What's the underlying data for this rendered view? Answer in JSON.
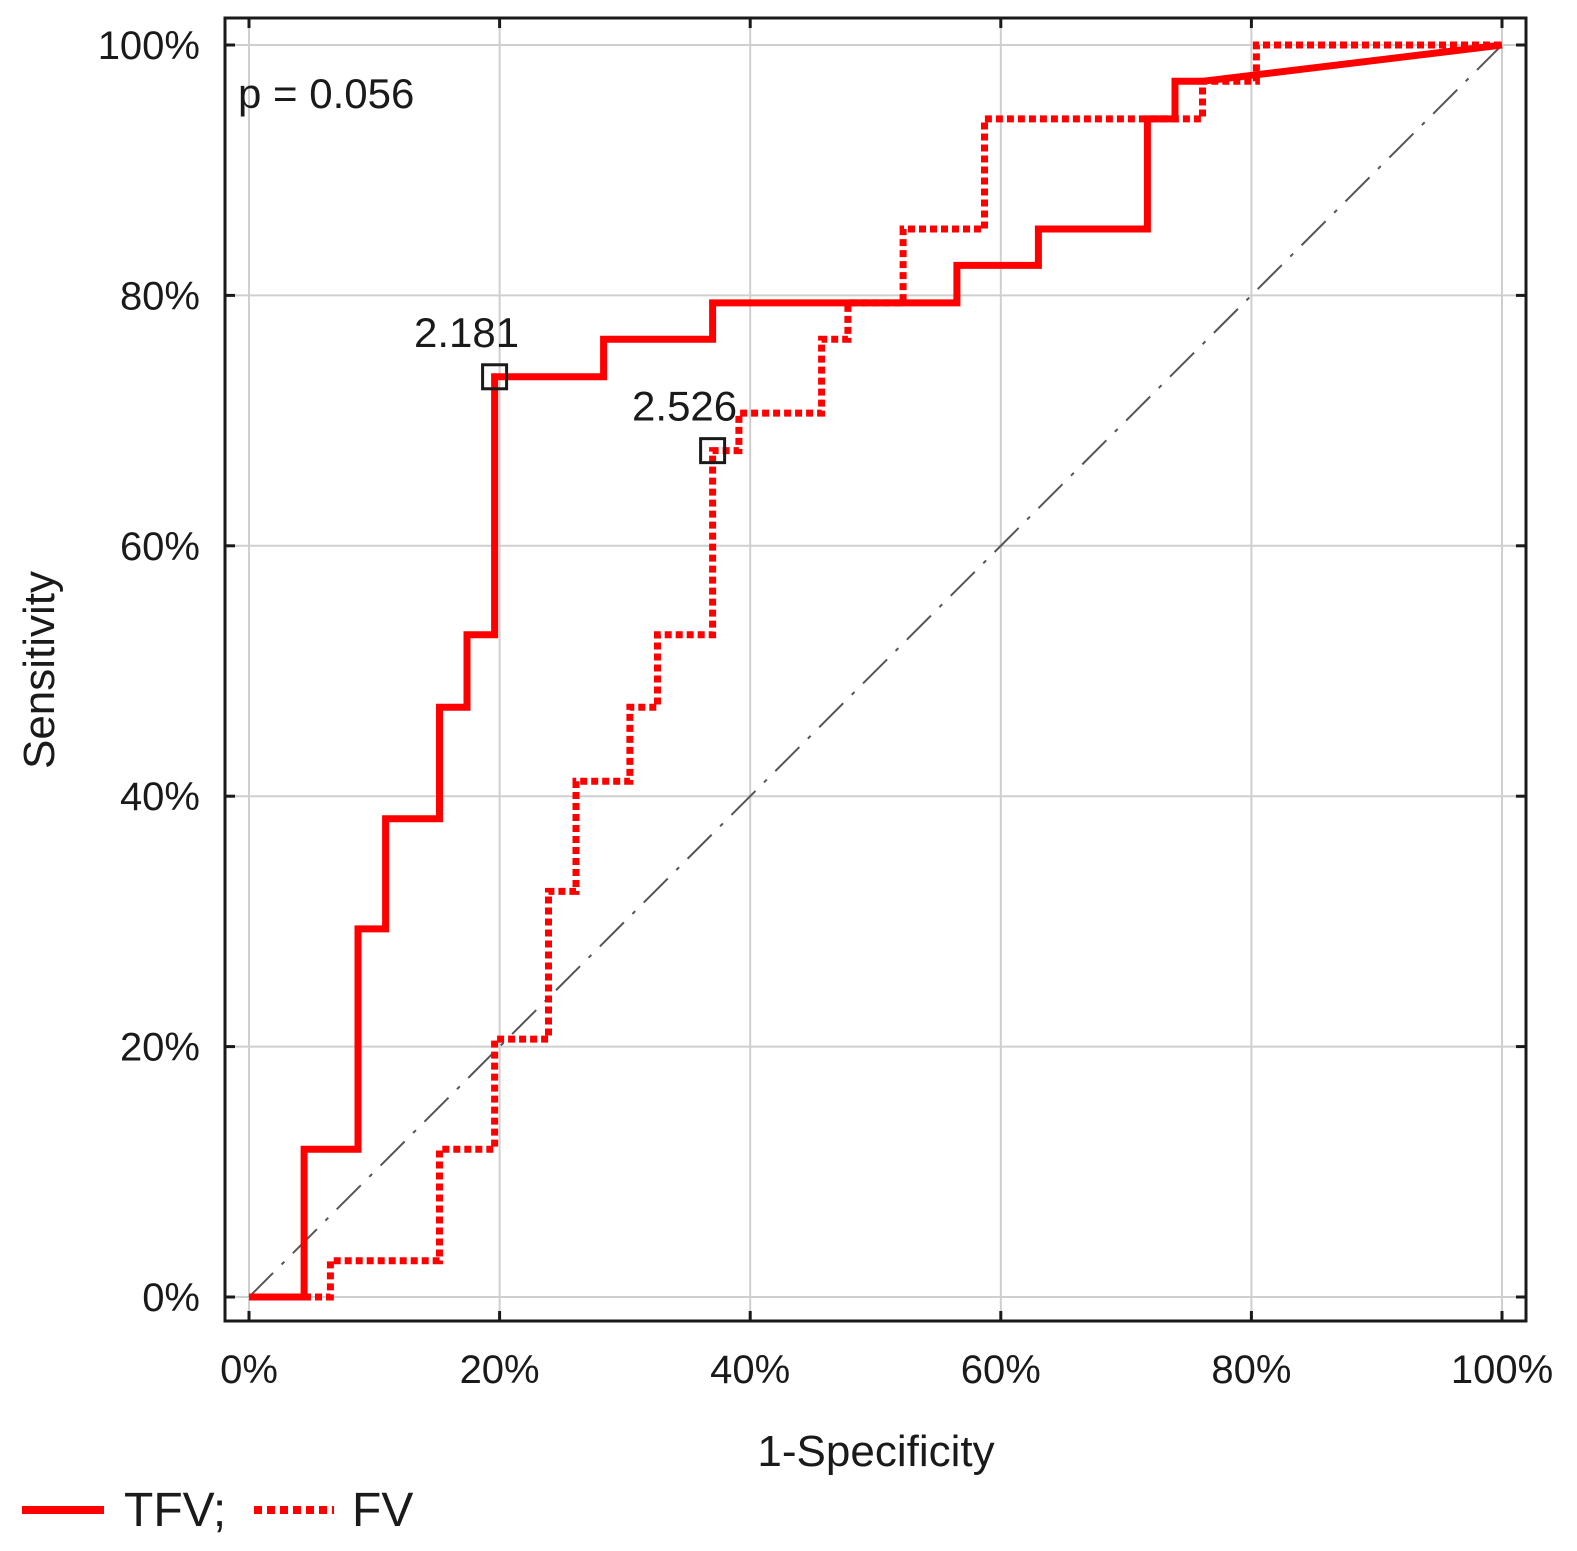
{
  "chart_data": {
    "type": "line",
    "subtype": "roc-curve",
    "xlabel": "1-Specificity",
    "ylabel": "Sensitivity",
    "xlim": [
      0,
      100
    ],
    "ylim": [
      0,
      100
    ],
    "x_ticks": [
      0,
      20,
      40,
      60,
      80,
      100
    ],
    "y_ticks": [
      0,
      20,
      40,
      60,
      80,
      100
    ],
    "x_tick_labels": [
      "0%",
      "20%",
      "40%",
      "60%",
      "80%",
      "100%"
    ],
    "y_tick_labels": [
      "0%",
      "20%",
      "40%",
      "60%",
      "80%",
      "100%"
    ],
    "grid": true,
    "legend_position": "bottom-left",
    "legend_labels": [
      "TFV;",
      "FV"
    ],
    "p_value_label": "p = 0.056",
    "reference_line": {
      "name": "chance",
      "x": [
        0,
        100
      ],
      "y": [
        0,
        100
      ],
      "color": "#555555",
      "style": "dashed"
    },
    "series": [
      {
        "name": "TFV",
        "color": "#ff0000",
        "style": "solid",
        "x": [
          0,
          4.4,
          4.4,
          8.7,
          8.7,
          10.9,
          10.9,
          15.2,
          15.2,
          17.4,
          17.4,
          19.6,
          19.6,
          28.3,
          28.3,
          37.0,
          37.0,
          56.5,
          56.5,
          63.0,
          63.0,
          71.7,
          71.7,
          73.9,
          73.9,
          76.1,
          100
        ],
        "y": [
          0,
          0,
          11.8,
          11.8,
          29.4,
          29.4,
          38.2,
          38.2,
          47.1,
          47.1,
          52.9,
          52.9,
          73.5,
          73.5,
          76.5,
          76.5,
          79.4,
          79.4,
          82.4,
          82.4,
          85.3,
          85.3,
          94.1,
          94.1,
          97.1,
          97.1,
          100
        ]
      },
      {
        "name": "FV",
        "color": "#ff0000",
        "style": "dotted",
        "x": [
          0,
          6.5,
          6.5,
          15.2,
          15.2,
          19.6,
          19.6,
          23.9,
          23.9,
          26.1,
          26.1,
          30.4,
          30.4,
          32.6,
          32.6,
          37.0,
          37.0,
          39.1,
          39.1,
          45.7,
          45.7,
          47.8,
          47.8,
          52.2,
          52.2,
          58.7,
          58.7,
          76.1,
          76.1,
          80.4,
          80.4,
          100
        ],
        "y": [
          0,
          0,
          2.9,
          2.9,
          11.8,
          11.8,
          20.6,
          20.6,
          32.4,
          32.4,
          41.2,
          41.2,
          47.1,
          47.1,
          52.9,
          52.9,
          67.6,
          67.6,
          70.6,
          70.6,
          76.5,
          76.5,
          79.4,
          79.4,
          85.3,
          85.3,
          94.1,
          94.1,
          97.1,
          97.1,
          100,
          100
        ]
      }
    ],
    "annotations": [
      {
        "series": "TFV",
        "label": "2.181",
        "x": 19.6,
        "y": 73.5
      },
      {
        "series": "FV",
        "label": "2.526",
        "x": 37.0,
        "y": 67.6
      }
    ]
  }
}
